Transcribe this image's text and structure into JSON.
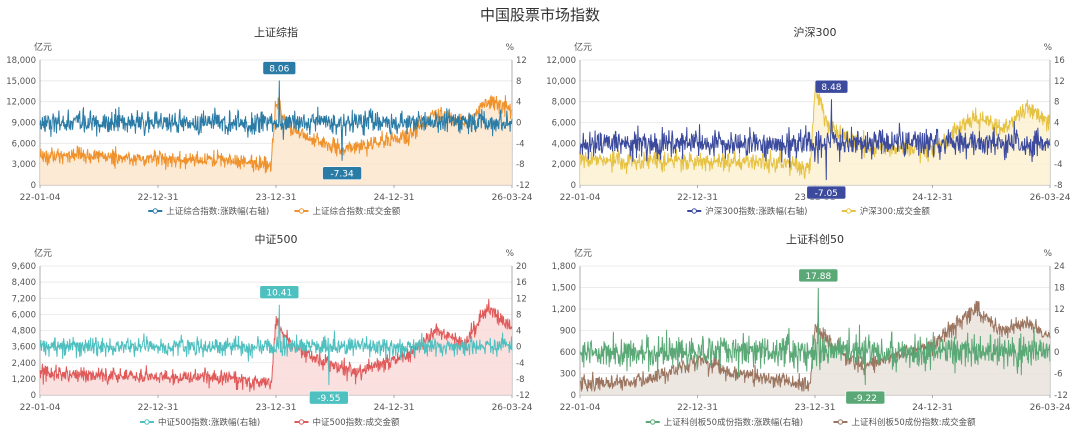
{
  "title": "中国股票市场指数",
  "colors": {
    "axis": "#999999",
    "grid": "#e6e6e6",
    "text": "#555555"
  },
  "chart_data": [
    {
      "type": "line",
      "title": "上证综指",
      "left_unit": "亿元",
      "right_unit": "%",
      "left_ylim": [
        0,
        18000
      ],
      "left_ticks": [
        "0",
        "3,000",
        "6,000",
        "9,000",
        "12,000",
        "15,000",
        "18,000"
      ],
      "right_ylim": [
        -12,
        12
      ],
      "right_ticks": [
        "-12",
        "-8",
        "-4",
        "0",
        "4",
        "8",
        "12"
      ],
      "x_ticks": [
        "22-01-04",
        "22-12-31",
        "23-12-31",
        "24-12-31",
        "26-03-24"
      ],
      "pct_color": "#2a7ba6",
      "amt_color": "#f0922c",
      "area_color": "#fde6cc",
      "pct_profile": [
        [
          0,
          0
        ],
        [
          0.9,
          0
        ],
        [
          0.5,
          8.06
        ],
        [
          0.51,
          -1
        ],
        [
          0.58,
          -4
        ],
        [
          0.61,
          -2
        ],
        [
          0.615,
          -6
        ],
        [
          0.64,
          -3
        ],
        [
          0.67,
          0
        ],
        [
          1,
          0
        ]
      ],
      "amt_profile": [
        [
          0,
          4200
        ],
        [
          0.2,
          3900
        ],
        [
          0.4,
          3500
        ],
        [
          0.49,
          2800
        ],
        [
          0.5,
          12500
        ],
        [
          0.53,
          8000
        ],
        [
          0.58,
          6500
        ],
        [
          0.64,
          5000
        ],
        [
          0.78,
          7000
        ],
        [
          0.84,
          10500
        ],
        [
          0.9,
          9000
        ],
        [
          0.95,
          12000
        ],
        [
          1,
          11000
        ]
      ],
      "pct_std": 1.1,
      "amt_std": 600,
      "peak_label": {
        "text": "8.06",
        "x": 0.507,
        "y": 8.06
      },
      "trough_label": {
        "text": "-7.34",
        "x": 0.64,
        "y": -7.34
      },
      "legend": [
        "上证综合指数:涨跌幅(右轴)",
        "上证综合指数:成交金额"
      ]
    },
    {
      "type": "line",
      "title": "沪深300",
      "left_unit": "亿元",
      "right_unit": "%",
      "left_ylim": [
        0,
        12000
      ],
      "left_ticks": [
        "0",
        "2,000",
        "4,000",
        "6,000",
        "8,000",
        "10,000",
        "12,000"
      ],
      "right_ylim": [
        -8,
        16
      ],
      "right_ticks": [
        "-8",
        "-4",
        "0",
        "4",
        "8",
        "12",
        "16"
      ],
      "x_ticks": [
        "22-01-04",
        "22-12-31",
        "23-12-31",
        "24-12-31",
        "26-03-24"
      ],
      "pct_color": "#3b4a9c",
      "amt_color": "#e6c243",
      "area_color": "#fbf1d2",
      "pct_profile": [
        [
          0,
          0
        ],
        [
          1,
          0
        ]
      ],
      "amt_profile": [
        [
          0,
          2500
        ],
        [
          0.2,
          2300
        ],
        [
          0.4,
          2200
        ],
        [
          0.49,
          1800
        ],
        [
          0.5,
          9500
        ],
        [
          0.53,
          5500
        ],
        [
          0.6,
          3800
        ],
        [
          0.75,
          3500
        ],
        [
          0.84,
          6500
        ],
        [
          0.9,
          5500
        ],
        [
          0.95,
          7500
        ],
        [
          1,
          6000
        ]
      ],
      "pct_std": 1.3,
      "amt_std": 450,
      "peak_label": {
        "text": "8.48",
        "x": 0.535,
        "y": 8.48
      },
      "trough_label": {
        "text": "-7.05",
        "x": 0.524,
        "y": -7.05
      },
      "legend": [
        "沪深300指数:涨跌幅(右轴)",
        "沪深300:成交金额"
      ]
    },
    {
      "type": "line",
      "title": "中证500",
      "left_unit": "亿元",
      "right_unit": "%",
      "left_ylim": [
        0,
        9600
      ],
      "left_ticks": [
        "0",
        "1,200",
        "2,400",
        "3,600",
        "4,800",
        "6,000",
        "7,200",
        "8,400",
        "9,600"
      ],
      "right_ylim": [
        -12,
        20
      ],
      "right_ticks": [
        "-12",
        "-8",
        "-4",
        "0",
        "4",
        "8",
        "12",
        "16",
        "20"
      ],
      "x_ticks": [
        "22-01-04",
        "22-12-31",
        "23-12-31",
        "24-12-31",
        "26-03-24"
      ],
      "pct_color": "#4fc0c0",
      "amt_color": "#e05a5a",
      "area_color": "#fadada",
      "pct_profile": [
        [
          0,
          0
        ],
        [
          1,
          0
        ]
      ],
      "amt_profile": [
        [
          0,
          1600
        ],
        [
          0.2,
          1400
        ],
        [
          0.4,
          1300
        ],
        [
          0.49,
          900
        ],
        [
          0.5,
          5500
        ],
        [
          0.53,
          3800
        ],
        [
          0.6,
          2400
        ],
        [
          0.67,
          1700
        ],
        [
          0.78,
          3000
        ],
        [
          0.84,
          4800
        ],
        [
          0.9,
          3800
        ],
        [
          0.95,
          6500
        ],
        [
          1,
          5000
        ]
      ],
      "pct_std": 1.2,
      "amt_std": 300,
      "peak_label": {
        "text": "10.41",
        "x": 0.507,
        "y": 10.41
      },
      "trough_label": {
        "text": "-9.55",
        "x": 0.612,
        "y": -9.55
      },
      "legend": [
        "中证500指数:涨跌幅(右轴)",
        "中证500指数:成交金额"
      ]
    },
    {
      "type": "line",
      "title": "上证科创50",
      "left_unit": "亿元",
      "right_unit": "%",
      "left_ylim": [
        0,
        1800
      ],
      "left_ticks": [
        "0",
        "300",
        "600",
        "900",
        "1,200",
        "1,500",
        "1,800"
      ],
      "right_ylim": [
        -12,
        24
      ],
      "right_ticks": [
        "-12",
        "-6",
        "0",
        "6",
        "12",
        "18",
        "24"
      ],
      "x_ticks": [
        "22-01-04",
        "22-12-31",
        "23-12-31",
        "24-12-31",
        "26-03-24"
      ],
      "pct_color": "#5aa876",
      "amt_color": "#9b7560",
      "area_color": "#e9e3dc",
      "pct_profile": [
        [
          0,
          0
        ],
        [
          1,
          0
        ]
      ],
      "amt_profile": [
        [
          0,
          150
        ],
        [
          0.15,
          220
        ],
        [
          0.26,
          500
        ],
        [
          0.32,
          300
        ],
        [
          0.45,
          200
        ],
        [
          0.49,
          150
        ],
        [
          0.5,
          1000
        ],
        [
          0.53,
          700
        ],
        [
          0.6,
          400
        ],
        [
          0.75,
          700
        ],
        [
          0.84,
          1200
        ],
        [
          0.9,
          900
        ],
        [
          0.95,
          1000
        ],
        [
          1,
          800
        ]
      ],
      "pct_std": 2.3,
      "amt_std": 60,
      "peak_label": {
        "text": "17.88",
        "x": 0.507,
        "y": 17.88
      },
      "trough_label": {
        "text": "-9.22",
        "x": 0.607,
        "y": -9.22
      },
      "legend": [
        "上证科创板50成份指数:涨跌幅(右轴)",
        "上证科创板50成份指数:成交金额"
      ]
    }
  ]
}
